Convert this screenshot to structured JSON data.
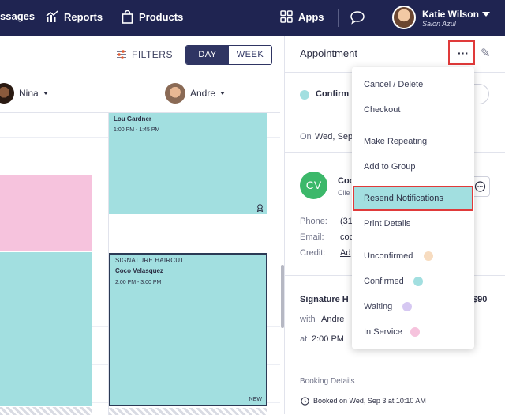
{
  "topnav": {
    "messages_label": "ssages",
    "reports_label": "Reports",
    "products_label": "Products",
    "apps_label": "Apps",
    "user_name": "Katie Wilson",
    "user_salon": "Salon Azul"
  },
  "calendar": {
    "filters_label": "FILTERS",
    "view_day": "DAY",
    "view_week": "WEEK",
    "staff": [
      "Nina",
      "Andre"
    ],
    "appointments": [
      {
        "name": "Lou Gardner",
        "time": "1:00 PM - 1:45 PM"
      },
      {
        "service": "SIGNATURE HAIRCUT",
        "name": "Coco Velasquez",
        "time": "2:00 PM - 3:00 PM",
        "badge": "NEW"
      }
    ]
  },
  "panel": {
    "title": "Appointment",
    "status": "Confirm",
    "date_prefix": "On",
    "date_value": "Wed, Sep",
    "client_initials": "CV",
    "client_name": "Coc",
    "client_sub": "Clie",
    "phone_label": "Phone:",
    "phone_value": "(31",
    "email_label": "Email:",
    "email_value": "coc",
    "credit_label": "Credit:",
    "credit_value": "Ad",
    "service_name": "Signature H",
    "service_price": "$90",
    "with_label": "with",
    "with_value": "Andre",
    "at_label": "at",
    "at_value": "2:00 PM",
    "booking_label": "Booking Details",
    "booked_text": "Booked on Wed, Sep 3 at 10:10 AM"
  },
  "menu": {
    "cancel_delete": "Cancel / Delete",
    "checkout": "Checkout",
    "make_repeating": "Make Repeating",
    "add_to_group": "Add to Group",
    "resend_notifications": "Resend Notifications",
    "print_details": "Print Details",
    "unconfirmed": "Unconfirmed",
    "confirmed": "Confirmed",
    "waiting": "Waiting",
    "in_service": "In Service"
  },
  "colors": {
    "nav_bg": "#1f2451",
    "appt_teal": "#a2dfe0",
    "appt_pink": "#f6c3dd",
    "highlight_red": "#e03a3a",
    "unconfirmed_dot": "#f7dcc0",
    "confirmed_dot": "#a2dfe0",
    "waiting_dot": "#d6c8f2",
    "in_service_dot": "#f6c3dd"
  }
}
